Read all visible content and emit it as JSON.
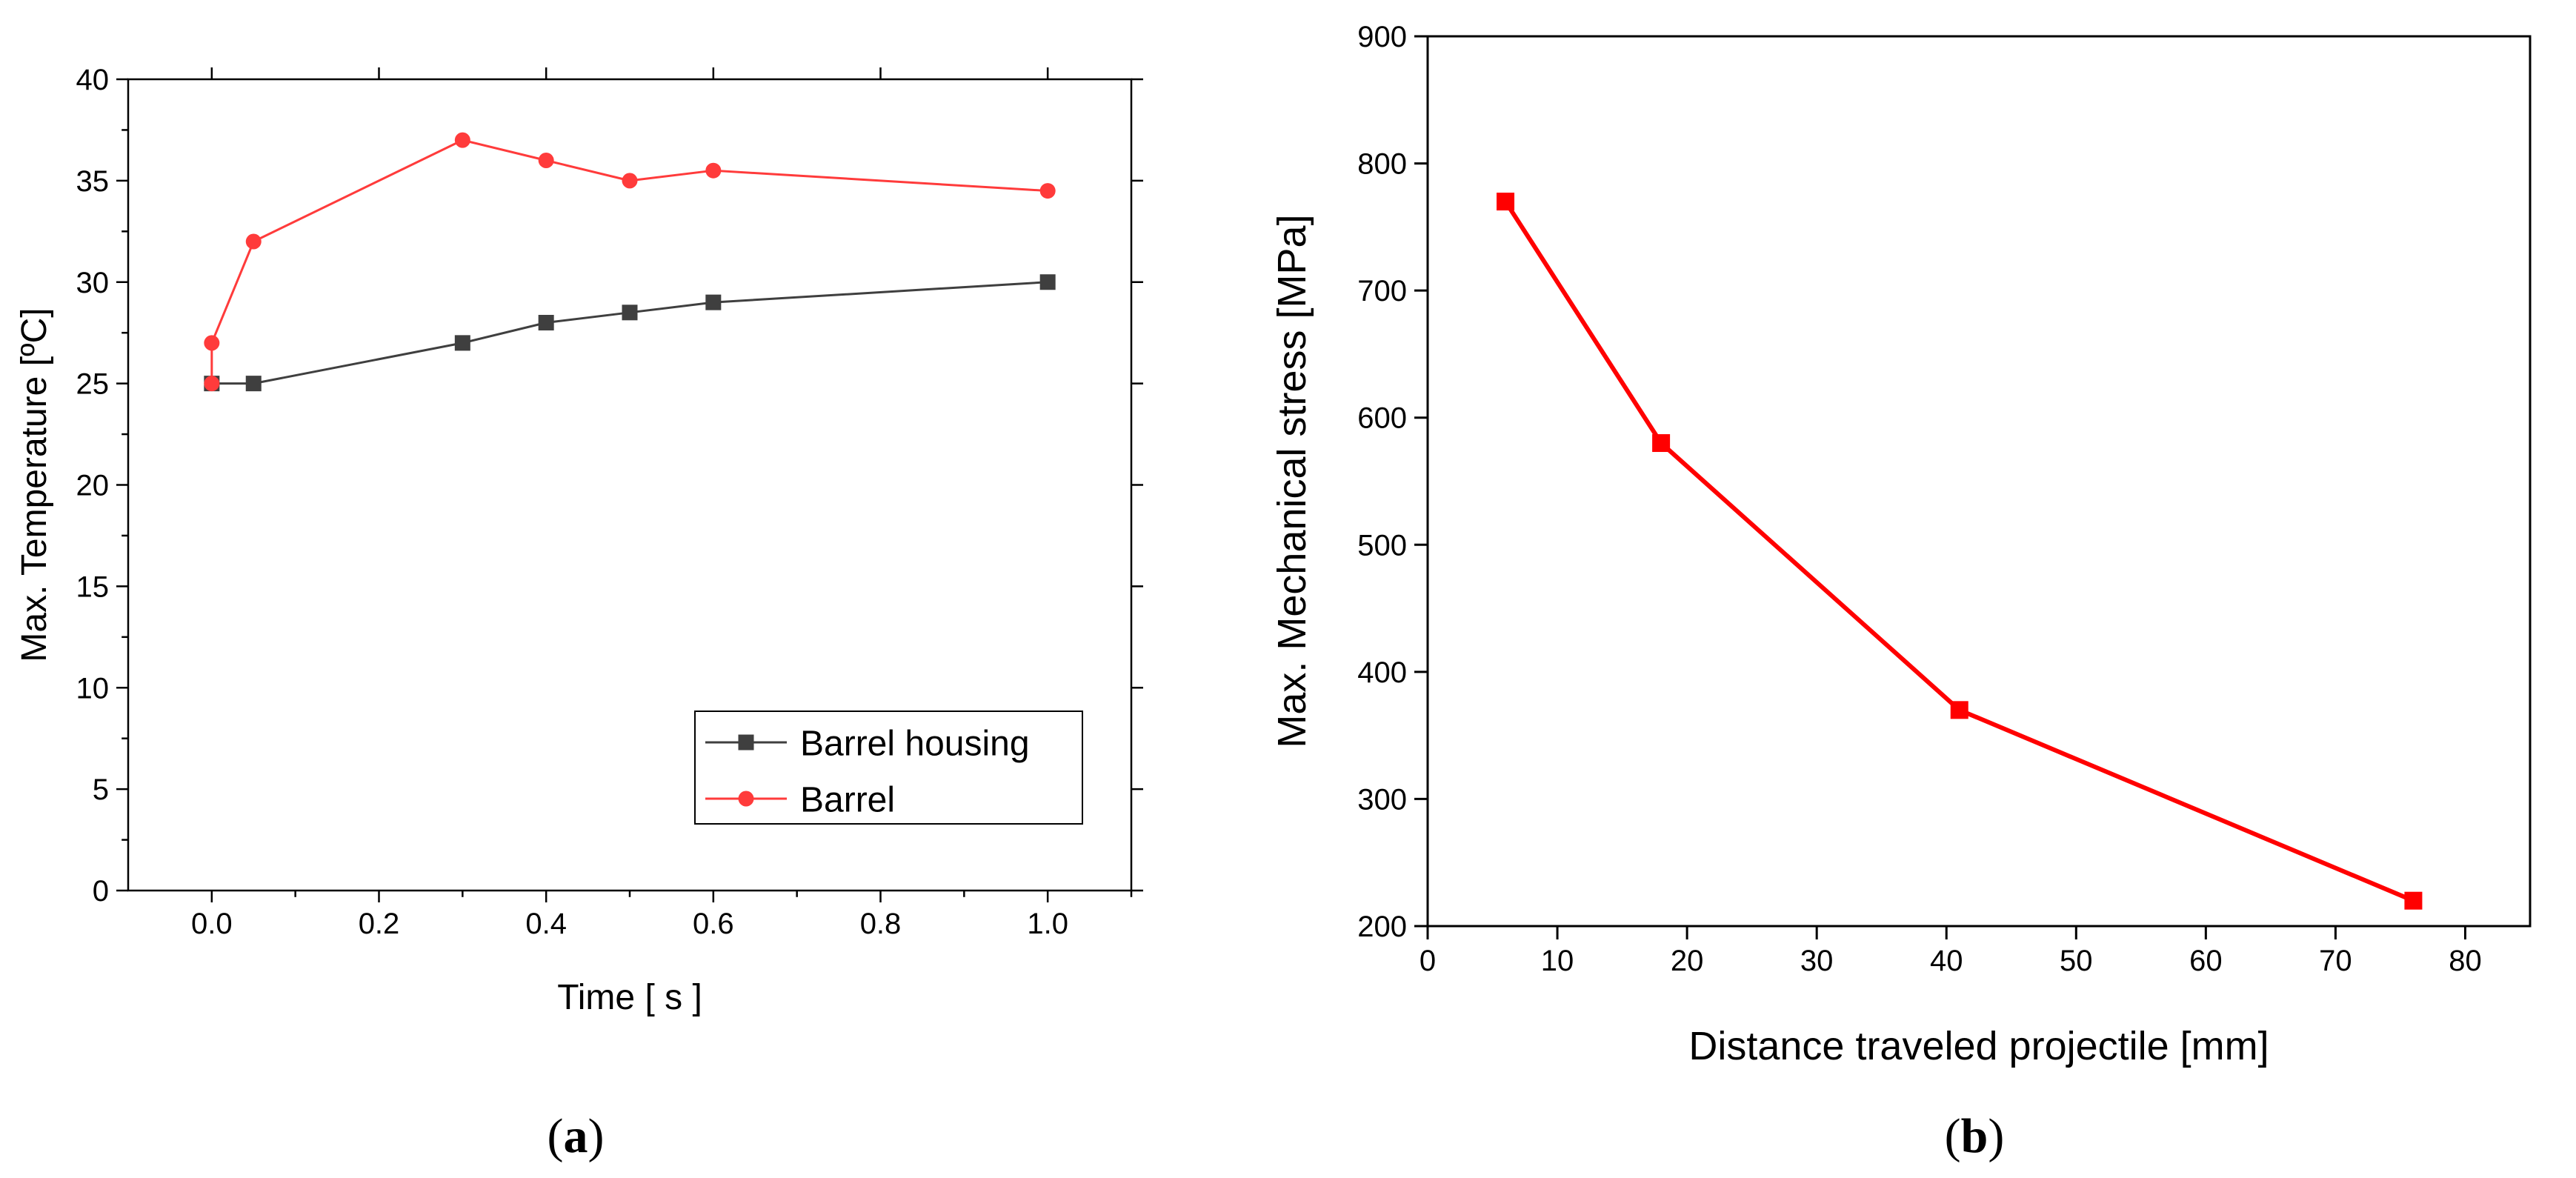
{
  "chart_data": [
    {
      "type": "line",
      "panel_label": "a",
      "title": "",
      "xlabel": "Time [ s ]",
      "ylabel": "Max. Temperature [ºC]",
      "xlim": [
        -0.1,
        1.1
      ],
      "ylim": [
        0,
        40
      ],
      "xticks": [
        0.0,
        0.2,
        0.4,
        0.6,
        0.8,
        1.0
      ],
      "xtick_labels": [
        "0.0",
        "0.2",
        "0.4",
        "0.6",
        "0.8",
        "1.0"
      ],
      "yticks": [
        0,
        5,
        10,
        15,
        20,
        25,
        30,
        35,
        40
      ],
      "ytick_labels": [
        "0",
        "5",
        "10",
        "15",
        "20",
        "25",
        "30",
        "35",
        "40"
      ],
      "grid": false,
      "legend_position": "bottom-right",
      "series": [
        {
          "name": "Barrel housing",
          "color": "#3f3f3f",
          "marker": "square",
          "x": [
            0.0,
            0.05,
            0.3,
            0.4,
            0.5,
            0.6,
            1.0
          ],
          "y": [
            25,
            25,
            27,
            28,
            28.5,
            29,
            30
          ]
        },
        {
          "name": "Barrel",
          "color": "#ff3b3b",
          "marker": "circle",
          "x": [
            0.0,
            0.0,
            0.05,
            0.3,
            0.4,
            0.5,
            0.6,
            1.0
          ],
          "y": [
            25,
            27,
            32,
            37,
            36,
            35,
            35.5,
            34.5
          ]
        }
      ]
    },
    {
      "type": "line",
      "panel_label": "b",
      "title": "",
      "xlabel": "Distance traveled projectile [mm]",
      "ylabel": "Max. Mechanical stress [MPa]",
      "xlim": [
        0,
        85
      ],
      "ylim": [
        200,
        900
      ],
      "xticks": [
        0,
        10,
        20,
        30,
        40,
        50,
        60,
        70,
        80
      ],
      "xtick_labels": [
        "0",
        "10",
        "20",
        "30",
        "40",
        "50",
        "60",
        "70",
        "80"
      ],
      "yticks": [
        200,
        300,
        400,
        500,
        600,
        700,
        800,
        900
      ],
      "ytick_labels": [
        "200",
        "300",
        "400",
        "500",
        "600",
        "700",
        "800",
        "900"
      ],
      "grid": false,
      "series": [
        {
          "name": "Max. mechanical stress",
          "color": "#ff0000",
          "marker": "square",
          "x": [
            6,
            18,
            41,
            76
          ],
          "y": [
            770,
            580,
            370,
            220
          ]
        }
      ]
    }
  ]
}
